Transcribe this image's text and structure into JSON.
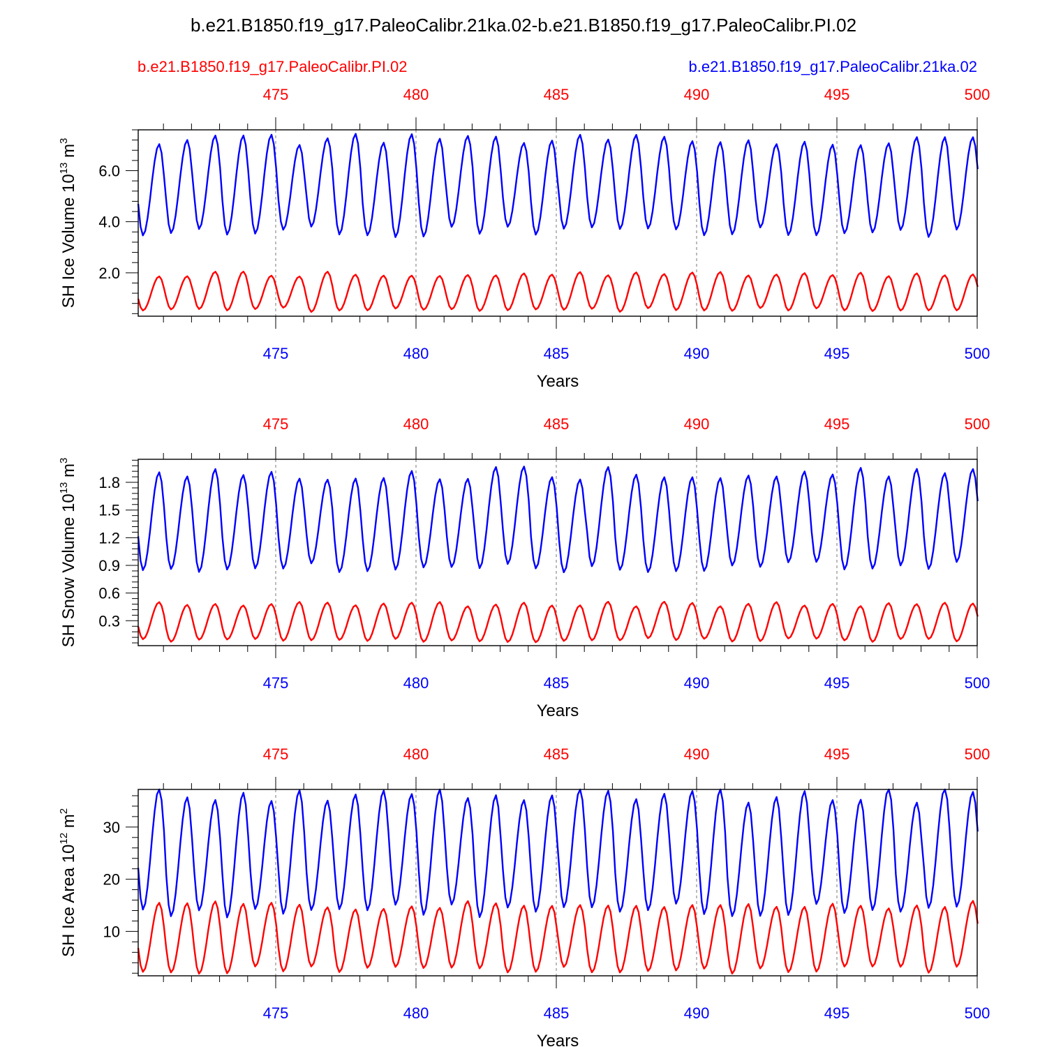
{
  "title": "b.e21.B1850.f19_g17.PaleoCalibr.21ka.02-b.e21.B1850.f19_g17.PaleoCalibr.PI.02",
  "legend": {
    "left_label": "b.e21.B1850.f19_g17.PaleoCalibr.PI.02",
    "right_label": "b.e21.B1850.f19_g17.PaleoCalibr.21ka.02"
  },
  "colors": {
    "pi_series": "#ff0000",
    "lgm_series": "#0000ff",
    "axis": "#000000",
    "grid": "#777777"
  },
  "chart_data": [
    {
      "type": "line",
      "xlabel": "Years",
      "ylabel_main": "SH Ice Volume 10",
      "ylabel_sup": "13",
      "ylabel_unit": " m",
      "ylabel_unit_sup": "3",
      "xlim": [
        470.1,
        500
      ],
      "ylim": [
        0.3,
        7.6
      ],
      "x_ticks": [
        475,
        480,
        485,
        490,
        495,
        500
      ],
      "x_tick_labels": [
        "475",
        "480",
        "485",
        "490",
        "495",
        "500"
      ],
      "y_ticks": [
        2.0,
        4.0,
        6.0
      ],
      "y_tick_labels": [
        "2.0",
        "4.0",
        "6.0"
      ],
      "series": [
        {
          "name": "b.e21.B1850.f19_g17.PaleoCalibr.21ka.02",
          "color": "#0000ff",
          "x_start": 470.1,
          "step_years": 0.0833333,
          "seasonal_min": 3.6,
          "seasonal_max": 7.2,
          "min_month": 2
        },
        {
          "name": "b.e21.B1850.f19_g17.PaleoCalibr.PI.02",
          "color": "#ff0000",
          "x_start": 470.1,
          "step_years": 0.0833333,
          "seasonal_min": 0.55,
          "seasonal_max": 1.95,
          "min_month": 2
        }
      ]
    },
    {
      "type": "line",
      "xlabel": "Years",
      "ylabel_main": "SH Snow Volume 10",
      "ylabel_sup": "13",
      "ylabel_unit": " m",
      "ylabel_unit_sup": "3",
      "xlim": [
        470.1,
        500
      ],
      "ylim": [
        0.03,
        2.05
      ],
      "x_ticks": [
        475,
        480,
        485,
        490,
        495,
        500
      ],
      "x_tick_labels": [
        "475",
        "480",
        "485",
        "490",
        "495",
        "500"
      ],
      "y_ticks": [
        0.3,
        0.6,
        0.9,
        1.2,
        1.5,
        1.8
      ],
      "y_tick_labels": [
        "0.3",
        "0.6",
        "0.9",
        "1.2",
        "1.5",
        "1.8"
      ],
      "series": [
        {
          "name": "b.e21.B1850.f19_g17.PaleoCalibr.21ka.02",
          "color": "#0000ff",
          "x_start": 470.1,
          "step_years": 0.0833333,
          "seasonal_min": 0.88,
          "seasonal_max": 1.9,
          "min_month": 2
        },
        {
          "name": "b.e21.B1850.f19_g17.PaleoCalibr.PI.02",
          "color": "#ff0000",
          "x_start": 470.1,
          "step_years": 0.0833333,
          "seasonal_min": 0.09,
          "seasonal_max": 0.48,
          "min_month": 2
        }
      ]
    },
    {
      "type": "line",
      "xlabel": "Years",
      "ylabel_main": "SH Ice Area 10",
      "ylabel_sup": "12",
      "ylabel_unit": " m",
      "ylabel_unit_sup": "2",
      "xlim": [
        470.1,
        500
      ],
      "ylim": [
        1.5,
        37.2
      ],
      "x_ticks": [
        475,
        480,
        485,
        490,
        495,
        500
      ],
      "x_tick_labels": [
        "475",
        "480",
        "485",
        "490",
        "495",
        "500"
      ],
      "y_ticks": [
        10,
        20,
        30
      ],
      "y_tick_labels": [
        "10",
        "20",
        "30"
      ],
      "series": [
        {
          "name": "b.e21.B1850.f19_g17.PaleoCalibr.21ka.02",
          "color": "#0000ff",
          "x_start": 470.1,
          "step_years": 0.0833333,
          "seasonal_min": 14.0,
          "seasonal_max": 36.0,
          "min_month": 2
        },
        {
          "name": "b.e21.B1850.f19_g17.PaleoCalibr.PI.02",
          "color": "#ff0000",
          "x_start": 470.1,
          "step_years": 0.0833333,
          "seasonal_min": 2.6,
          "seasonal_max": 15.0,
          "min_month": 2
        }
      ]
    }
  ]
}
